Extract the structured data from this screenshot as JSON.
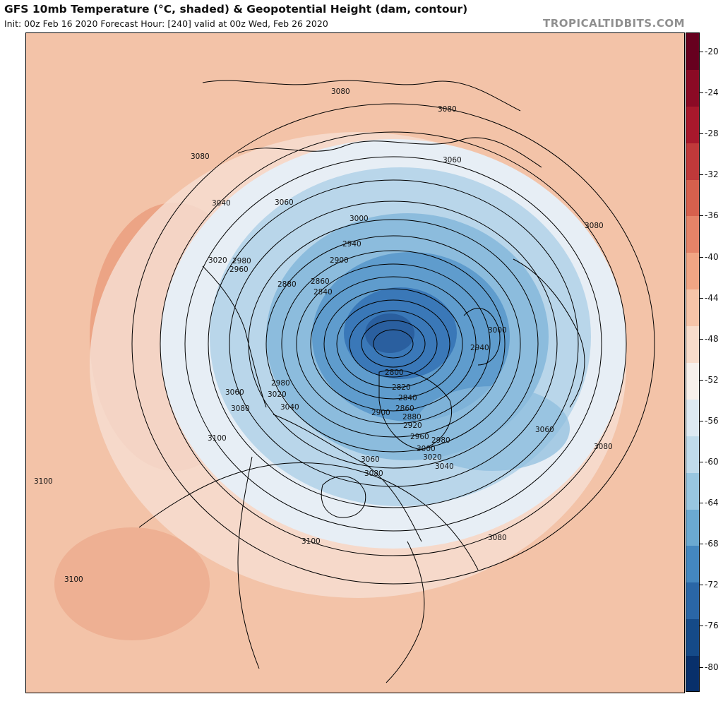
{
  "header": {
    "title": "GFS 10mb Temperature (°C, shaded) & Geopotential Height (dam, contour)",
    "subtitle": "Init: 00z Feb 16 2020   Forecast Hour: [240]   valid at 00z Wed, Feb 26 2020",
    "brand": "TROPICALTIDBITS.COM"
  },
  "colorbar": {
    "labels": [
      "-20",
      "-24",
      "-28",
      "-32",
      "-36",
      "-40",
      "-44",
      "-48",
      "-52",
      "-56",
      "-60",
      "-64",
      "-68",
      "-72",
      "-76",
      "-80"
    ],
    "colors": [
      "#67001f",
      "#8b0a25",
      "#a8182c",
      "#c0393a",
      "#d6604d",
      "#e58368",
      "#f1a584",
      "#f6c4a8",
      "#f8dccb",
      "#f7f0eb",
      "#dde9f2",
      "#c0dbeb",
      "#98c6e0",
      "#6ba9d1",
      "#4487bf",
      "#2a66a6",
      "#154a88",
      "#08306b"
    ]
  },
  "map": {
    "colors": {
      "background": "#f3c3a8",
      "warm": "#e99a7a",
      "hot": "#dd7f5f",
      "neutral": "#f6ddd0",
      "cool": "#e7eef5",
      "cold1": "#b9d6ea",
      "cold2": "#8cbcdd",
      "cold3": "#5f9ccd",
      "cold4": "#3a78b8",
      "core": "#2a5f9f",
      "coast": "#000000",
      "contour": "#000000"
    },
    "contour_labels": [
      {
        "text": "3080"
      },
      {
        "text": "3080"
      },
      {
        "text": "3080"
      },
      {
        "text": "3060"
      },
      {
        "text": "3040"
      },
      {
        "text": "3060"
      },
      {
        "text": "3000"
      },
      {
        "text": "3080"
      },
      {
        "text": "2940"
      },
      {
        "text": "2900"
      },
      {
        "text": "3020"
      },
      {
        "text": "2980"
      },
      {
        "text": "2960"
      },
      {
        "text": "2880"
      },
      {
        "text": "2860"
      },
      {
        "text": "2840"
      },
      {
        "text": "3000"
      },
      {
        "text": "2940"
      },
      {
        "text": "2800"
      },
      {
        "text": "2820"
      },
      {
        "text": "2840"
      },
      {
        "text": "2860"
      },
      {
        "text": "2880"
      },
      {
        "text": "2900"
      },
      {
        "text": "2920"
      },
      {
        "text": "2960"
      },
      {
        "text": "2980"
      },
      {
        "text": "3000"
      },
      {
        "text": "3020"
      },
      {
        "text": "3040"
      },
      {
        "text": "2980"
      },
      {
        "text": "3060"
      },
      {
        "text": "3020"
      },
      {
        "text": "3080"
      },
      {
        "text": "3040"
      },
      {
        "text": "3100"
      },
      {
        "text": "3060"
      },
      {
        "text": "3080"
      },
      {
        "text": "3060"
      },
      {
        "text": "3080"
      },
      {
        "text": "3100"
      },
      {
        "text": "3100"
      },
      {
        "text": "3080"
      },
      {
        "text": "3100"
      }
    ]
  }
}
